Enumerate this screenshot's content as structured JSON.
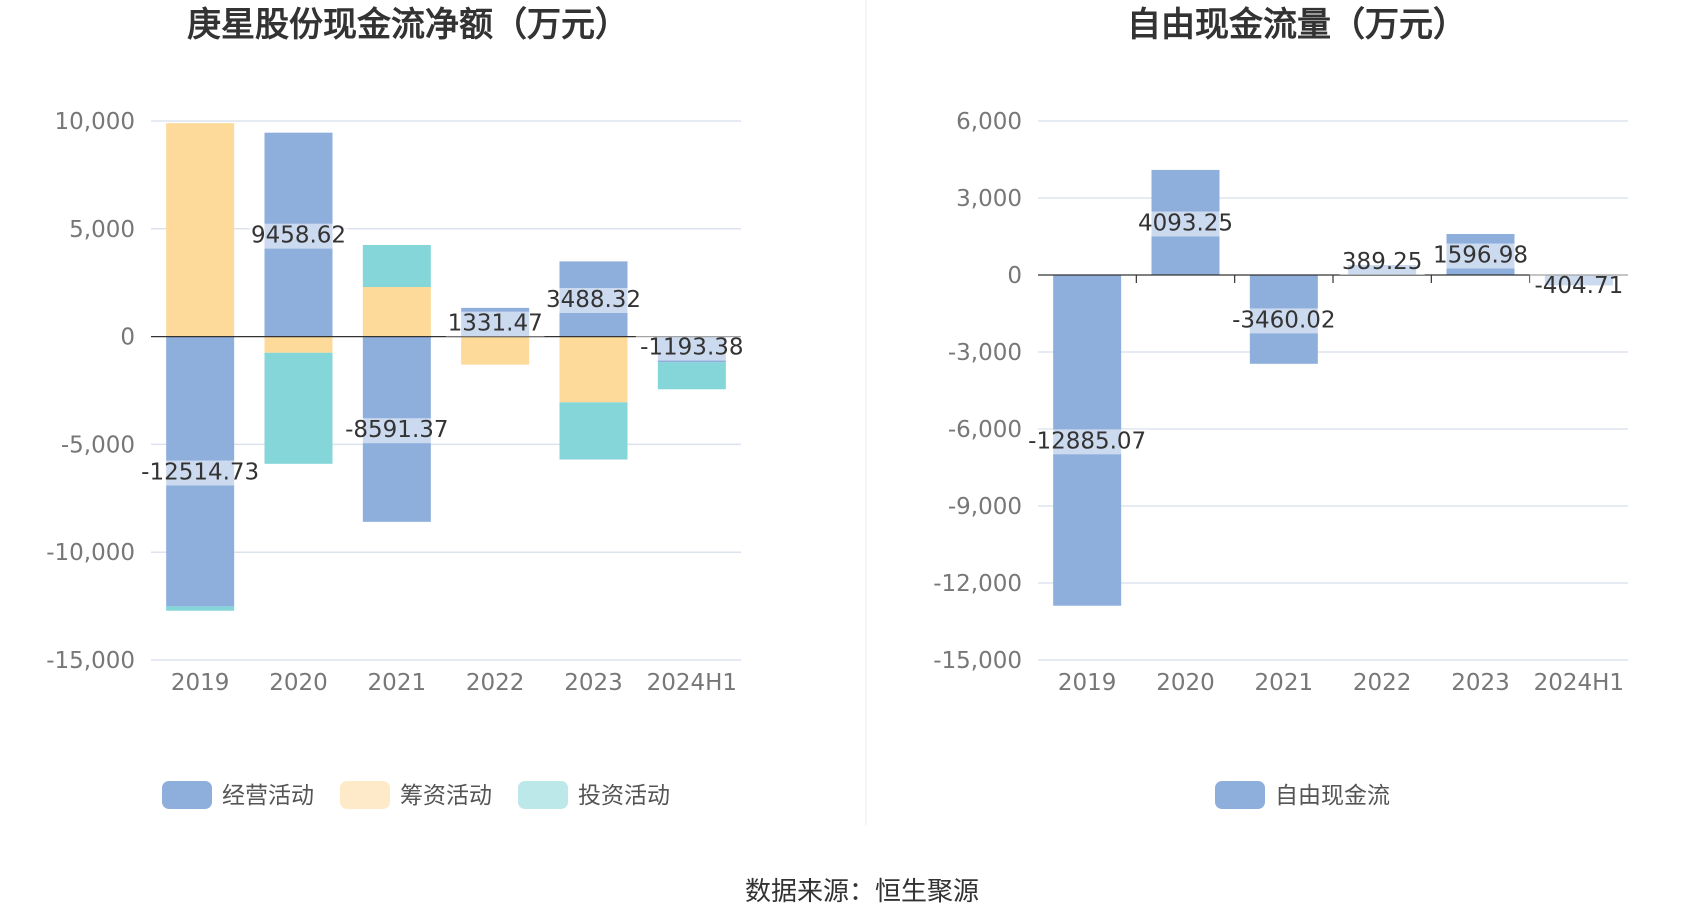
{
  "source_text": "数据来源：恒生聚源",
  "colors": {
    "operating": "#8eaedc",
    "financing": "#fdd99a",
    "investing": "#85d6d8",
    "free_cash_flow": "#8eaedc",
    "grid": "#dde3ee",
    "axis": "#333333",
    "divider": "#eeeeee"
  },
  "chart_data": [
    {
      "type": "bar",
      "stacked": true,
      "title": "庚星股份现金流净额（万元）",
      "categories": [
        "2019",
        "2020",
        "2021",
        "2022",
        "2023",
        "2024H1"
      ],
      "ylim": [
        -15000,
        10000
      ],
      "yticks": [
        10000,
        5000,
        0,
        -5000,
        -10000,
        -15000
      ],
      "ytick_labels": [
        "10,000",
        "5,000",
        "0",
        "-5,000",
        "-10,000",
        "-15,000"
      ],
      "grid": true,
      "legend_position": "bottom",
      "series": [
        {
          "name": "经营活动",
          "color_key": "operating",
          "values": [
            -12514.73,
            9458.62,
            -8591.37,
            1331.47,
            3488.32,
            -1193.38
          ],
          "labels": [
            "-12514.73",
            "9458.62",
            "-8591.37",
            "1331.47",
            "3488.32",
            "-1193.38"
          ]
        },
        {
          "name": "筹资活动",
          "color_key": "financing",
          "values": [
            9900,
            -750,
            2300,
            -1300,
            -3050,
            0
          ]
        },
        {
          "name": "投资活动",
          "color_key": "investing",
          "values": [
            -200,
            -5150,
            1950,
            0,
            -2650,
            -1250
          ]
        }
      ]
    },
    {
      "type": "bar",
      "title": "自由现金流量（万元）",
      "categories": [
        "2019",
        "2020",
        "2021",
        "2022",
        "2023",
        "2024H1"
      ],
      "ylim": [
        -15000,
        6000
      ],
      "yticks": [
        6000,
        3000,
        0,
        -3000,
        -6000,
        -9000,
        -12000,
        -15000
      ],
      "ytick_labels": [
        "6,000",
        "3,000",
        "0",
        "-3,000",
        "-6,000",
        "-9,000",
        "-12,000",
        "-15,000"
      ],
      "grid": true,
      "legend_position": "bottom",
      "series": [
        {
          "name": "自由现金流",
          "color_key": "free_cash_flow",
          "values": [
            -12885.07,
            4093.25,
            -3460.02,
            389.25,
            1596.98,
            -404.71
          ],
          "labels": [
            "-12885.07",
            "4093.25",
            "-3460.02",
            "389.25",
            "1596.98",
            "-404.71"
          ]
        }
      ]
    }
  ]
}
